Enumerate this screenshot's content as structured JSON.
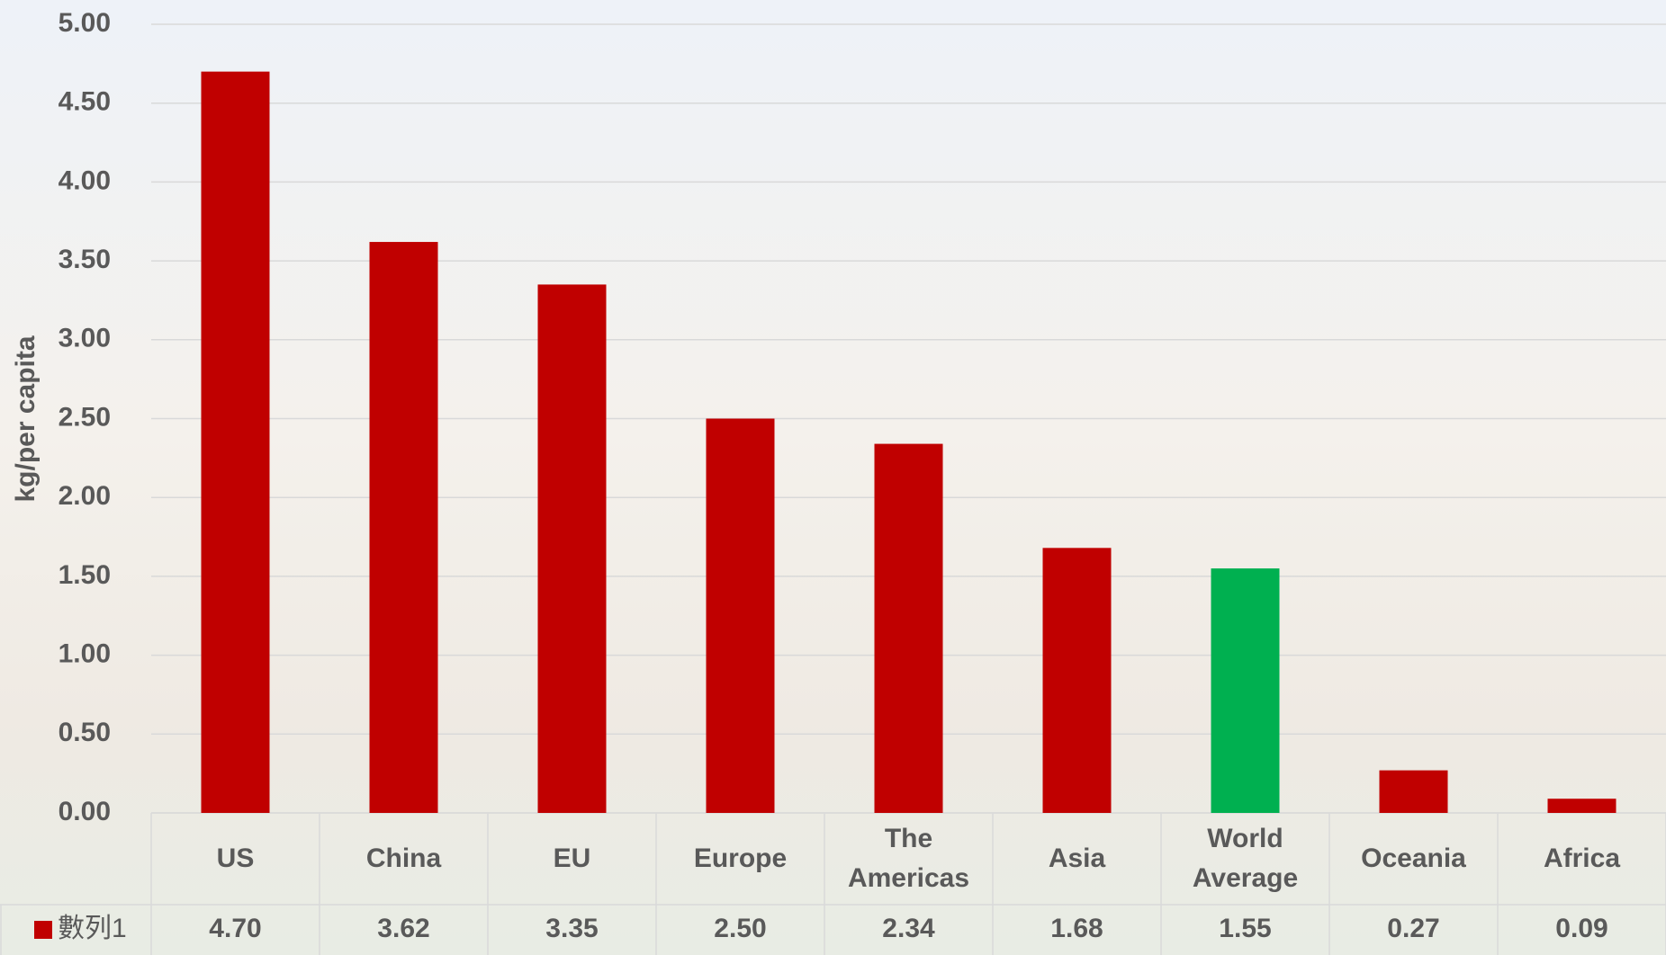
{
  "chart_data": {
    "type": "bar",
    "y_label": "kg/per capita",
    "categories": [
      "US",
      "China",
      "EU",
      "Europe",
      "The Americas",
      "Asia",
      "World Average",
      "Oceania",
      "Africa"
    ],
    "series": [
      {
        "name": "數列1",
        "color": "#c00000",
        "values": [
          4.7,
          3.62,
          3.35,
          2.5,
          2.34,
          1.68,
          1.55,
          0.27,
          0.09
        ],
        "value_labels": [
          "4.70",
          "3.62",
          "3.35",
          "2.50",
          "2.34",
          "1.68",
          "1.55",
          "0.27",
          "0.09"
        ],
        "point_colors": [
          "#c00000",
          "#c00000",
          "#c00000",
          "#c00000",
          "#c00000",
          "#c00000",
          "#00b050",
          "#c00000",
          "#c00000"
        ]
      }
    ],
    "ylim": [
      0,
      5
    ],
    "yticks": [
      {
        "value": 0,
        "label": "0.00"
      },
      {
        "value": 0.5,
        "label": "0.50"
      },
      {
        "value": 1,
        "label": "1.00"
      },
      {
        "value": 1.5,
        "label": "1.50"
      },
      {
        "value": 2,
        "label": "2.00"
      },
      {
        "value": 2.5,
        "label": "2.50"
      },
      {
        "value": 3,
        "label": "3.00"
      },
      {
        "value": 3.5,
        "label": "3.50"
      },
      {
        "value": 4,
        "label": "4.00"
      },
      {
        "value": 4.5,
        "label": "4.50"
      },
      {
        "value": 5,
        "label": "5.00"
      }
    ],
    "grid": true,
    "data_table": true
  }
}
